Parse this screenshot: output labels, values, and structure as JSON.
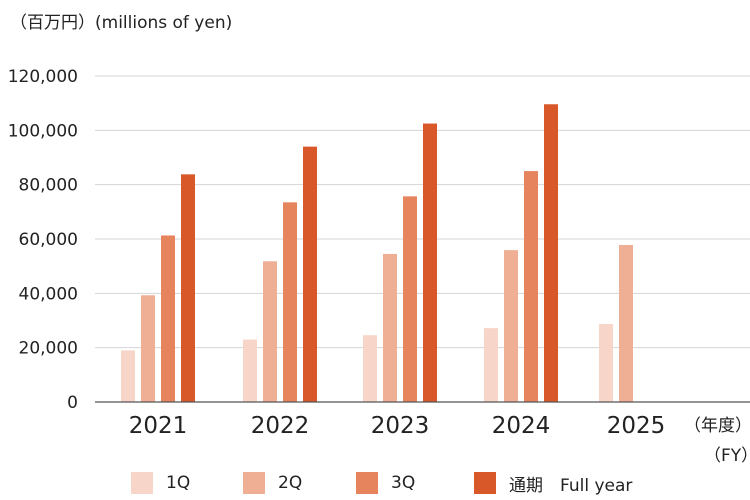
{
  "unit_label": "（百万円）(millions of yen)",
  "x_unit_jp": "（年度）",
  "x_unit_en": "（FY）",
  "chart_data": {
    "type": "bar",
    "categories": [
      "2021",
      "2022",
      "2023",
      "2024",
      "2025"
    ],
    "series": [
      {
        "name": "1Q",
        "color": "#f7d6c9",
        "values": [
          19000,
          23000,
          24600,
          27200,
          28700
        ]
      },
      {
        "name": "2Q",
        "color": "#eeaf94",
        "values": [
          39300,
          51800,
          54500,
          55900,
          57800
        ]
      },
      {
        "name": "3Q",
        "color": "#e5845d",
        "values": [
          61300,
          73500,
          75700,
          85000,
          null
        ]
      },
      {
        "name": "通期　Full year",
        "color": "#d9582a",
        "values": [
          83800,
          94000,
          102500,
          109600,
          null
        ]
      }
    ],
    "yticks": [
      "120,000",
      "100,000",
      "80,000",
      "60,000",
      "40,000",
      "20,000",
      "0"
    ],
    "ylim": [
      0,
      120000
    ],
    "grid": true,
    "legend_position": "bottom"
  }
}
